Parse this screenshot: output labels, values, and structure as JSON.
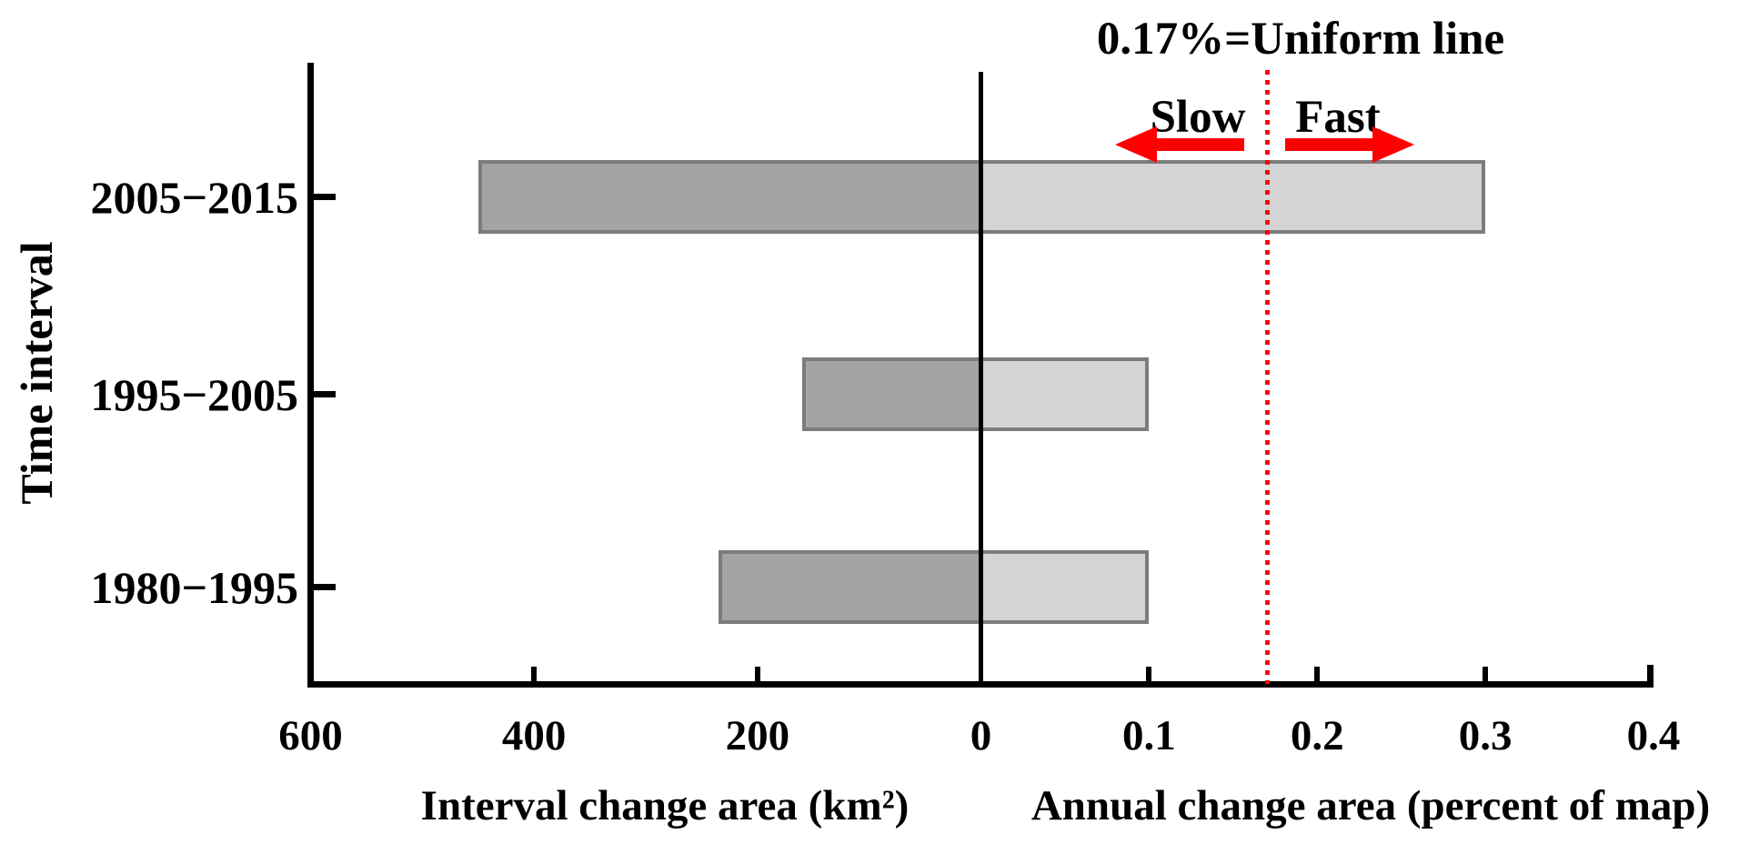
{
  "chart_data": {
    "type": "bar",
    "variant": "horizontal-diverging-dual-axis",
    "categories": [
      "2005−2015",
      "1995−2005",
      "1980−1995"
    ],
    "series": [
      {
        "name": "Interval change area (km²)",
        "axis": "left",
        "values": [
          450,
          160,
          235
        ]
      },
      {
        "name": "Annual change area (percent of map)",
        "axis": "right",
        "values": [
          0.3,
          0.1,
          0.1
        ]
      }
    ],
    "y_axis": {
      "title": "Time interval"
    },
    "left_axis": {
      "title": "Interval change area (km²)",
      "min": 0,
      "max": 600,
      "direction": "leftward-from-zero",
      "ticks": [
        {
          "v": 600,
          "label": "600"
        },
        {
          "v": 400,
          "label": "400"
        },
        {
          "v": 200,
          "label": "200"
        },
        {
          "v": 0,
          "label": "0"
        }
      ],
      "marks": [
        400,
        200
      ]
    },
    "right_axis": {
      "title": "Annual change area (percent of map)",
      "min": 0,
      "max": 0.4,
      "direction": "rightward-from-zero",
      "ticks": [
        {
          "v": 0.1,
          "label": "0.1"
        },
        {
          "v": 0.2,
          "label": "0.2"
        },
        {
          "v": 0.3,
          "label": "0.3"
        },
        {
          "v": 0.4,
          "label": "0.4"
        }
      ],
      "marks": [
        0.1,
        0.2,
        0.3,
        0.4
      ]
    },
    "uniform_line": {
      "value": 0.17,
      "label": "0.17%=Uniform line"
    },
    "annotations": {
      "slow": "Slow",
      "fast": "Fast"
    },
    "legend": "none",
    "grid": false,
    "colors": {
      "interval_bar_fill": "#a4a4a4",
      "annual_bar_fill": "#d4d4d4",
      "bar_border": "#7c7c7c",
      "axis": "#000000",
      "uniform_line": "#ff0000",
      "arrow": "#ff0000",
      "text": "#000000",
      "background": "#ffffff"
    }
  }
}
